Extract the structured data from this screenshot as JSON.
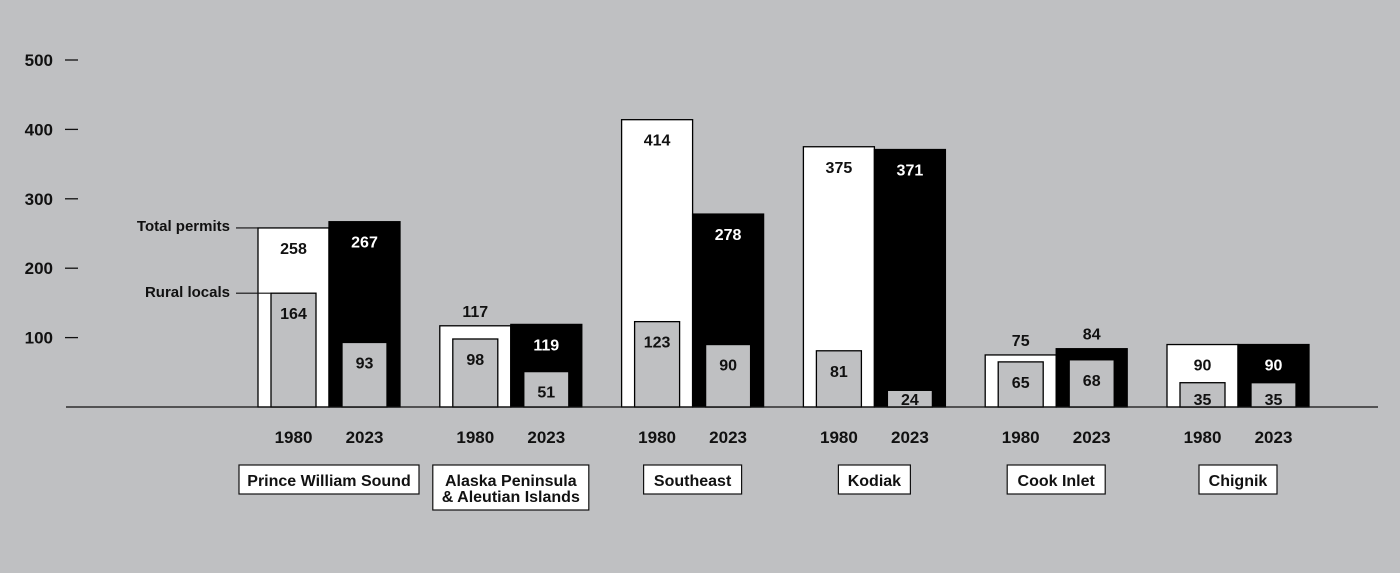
{
  "colors": {
    "background": "#bfc0c2",
    "bar_1980": "#ffffff",
    "bar_2023": "#000000",
    "rural_bar": "#bfc0c2",
    "stroke": "#000000"
  },
  "chart_data": {
    "type": "bar",
    "yticks": [
      100,
      200,
      300,
      400,
      500
    ],
    "ylim": [
      0,
      500
    ],
    "legend": {
      "total_label": "Total permits",
      "rural_label": "Rural locals"
    },
    "years": [
      "1980",
      "2023"
    ],
    "groups": [
      {
        "region": [
          "Prince William Sound"
        ],
        "total": [
          258,
          267
        ],
        "rural": [
          164,
          93
        ]
      },
      {
        "region": [
          "Alaska Peninsula",
          "& Aleutian Islands"
        ],
        "total": [
          117,
          119
        ],
        "rural": [
          98,
          51
        ]
      },
      {
        "region": [
          "Southeast"
        ],
        "total": [
          414,
          278
        ],
        "rural": [
          123,
          90
        ]
      },
      {
        "region": [
          "Kodiak"
        ],
        "total": [
          375,
          371
        ],
        "rural": [
          81,
          24
        ]
      },
      {
        "region": [
          "Cook Inlet"
        ],
        "total": [
          75,
          84
        ],
        "rural": [
          65,
          68
        ]
      },
      {
        "region": [
          "Chignik"
        ],
        "total": [
          90,
          90
        ],
        "rural": [
          35,
          35
        ]
      }
    ]
  }
}
